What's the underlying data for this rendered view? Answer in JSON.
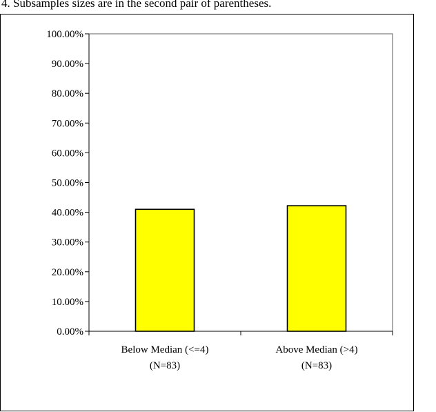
{
  "caption": "4. Subsamples sizes are in the second pair of parentheses.",
  "chart_data": {
    "type": "bar",
    "title": "",
    "xlabel": "",
    "ylabel": "",
    "categories": [
      [
        "Below Median (<=4)",
        "(N=83)"
      ],
      [
        "Above Median (>4)",
        "(N=83)"
      ]
    ],
    "values": [
      0.41,
      0.422
    ],
    "ylim": [
      0,
      1
    ],
    "yticks": [
      0,
      0.1,
      0.2,
      0.3,
      0.4,
      0.5,
      0.6,
      0.7,
      0.8,
      0.9,
      1.0
    ],
    "ytick_labels": [
      "0.00%",
      "10.00%",
      "20.00%",
      "30.00%",
      "40.00%",
      "50.00%",
      "60.00%",
      "70.00%",
      "80.00%",
      "90.00%",
      "100.00%"
    ],
    "grid": false,
    "legend": "none",
    "bar_color": "#ffff00",
    "bar_edge_color": "#000000",
    "plot_border_color": "#808080"
  }
}
